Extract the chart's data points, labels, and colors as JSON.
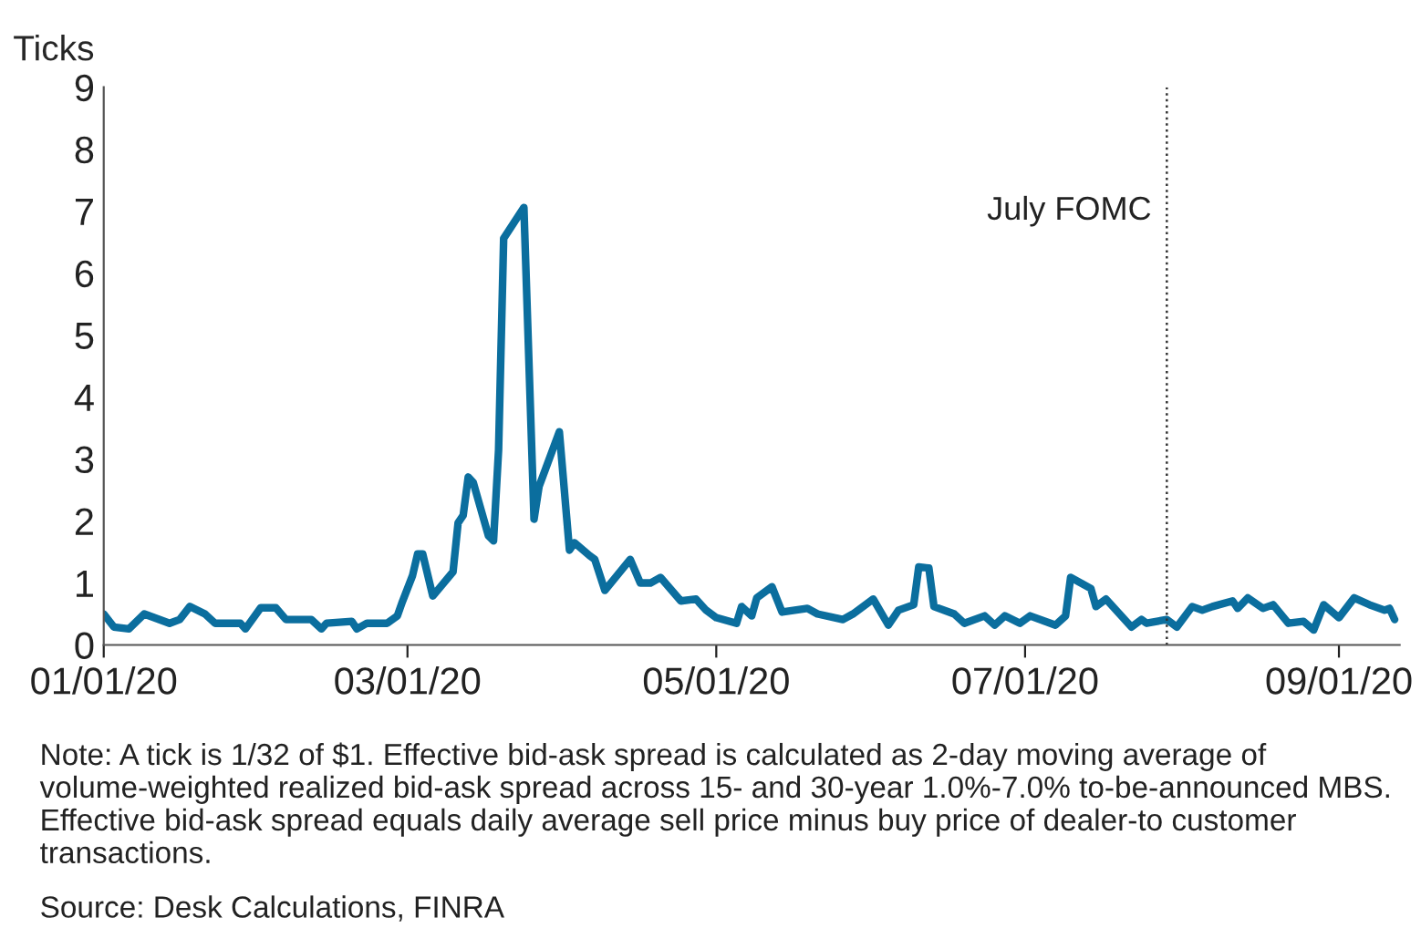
{
  "chart_data": {
    "type": "line",
    "ylabel": "Ticks",
    "x": [
      "2020-01-01",
      "2020-01-03",
      "2020-01-06",
      "2020-01-09",
      "2020-01-14",
      "2020-01-16",
      "2020-01-18",
      "2020-01-21",
      "2020-01-23",
      "2020-01-28",
      "2020-01-29",
      "2020-02-01",
      "2020-02-04",
      "2020-02-06",
      "2020-02-11",
      "2020-02-13",
      "2020-02-14",
      "2020-02-19",
      "2020-02-20",
      "2020-02-22",
      "2020-02-26",
      "2020-02-28",
      "2020-02-29",
      "2020-03-02",
      "2020-03-03",
      "2020-03-04",
      "2020-03-06",
      "2020-03-10",
      "2020-03-11",
      "2020-03-12",
      "2020-03-13",
      "2020-03-14",
      "2020-03-17",
      "2020-03-18",
      "2020-03-19",
      "2020-03-20",
      "2020-03-24",
      "2020-03-26",
      "2020-03-27",
      "2020-03-31",
      "2020-04-02",
      "2020-04-03",
      "2020-04-06",
      "2020-04-07",
      "2020-04-09",
      "2020-04-14",
      "2020-04-16",
      "2020-04-18",
      "2020-04-20",
      "2020-04-24",
      "2020-04-27",
      "2020-04-29",
      "2020-05-01",
      "2020-05-05",
      "2020-05-06",
      "2020-05-08",
      "2020-05-09",
      "2020-05-12",
      "2020-05-14",
      "2020-05-19",
      "2020-05-21",
      "2020-05-26",
      "2020-05-28",
      "2020-06-01",
      "2020-06-04",
      "2020-06-06",
      "2020-06-09",
      "2020-06-10",
      "2020-06-12",
      "2020-06-13",
      "2020-06-17",
      "2020-06-19",
      "2020-06-23",
      "2020-06-25",
      "2020-06-27",
      "2020-06-30",
      "2020-07-02",
      "2020-07-07",
      "2020-07-09",
      "2020-07-10",
      "2020-07-14",
      "2020-07-15",
      "2020-07-17",
      "2020-07-22",
      "2020-07-24",
      "2020-07-25",
      "2020-07-29",
      "2020-07-31",
      "2020-08-03",
      "2020-08-05",
      "2020-08-07",
      "2020-08-11",
      "2020-08-12",
      "2020-08-14",
      "2020-08-17",
      "2020-08-19",
      "2020-08-22",
      "2020-08-25",
      "2020-08-27",
      "2020-08-29",
      "2020-09-01",
      "2020-09-04",
      "2020-09-07",
      "2020-09-10",
      "2020-09-11",
      "2020-09-12"
    ],
    "series": [
      {
        "color": "#0b6e9e",
        "values": [
          0.5,
          0.29,
          0.26,
          0.5,
          0.35,
          0.41,
          0.62,
          0.5,
          0.35,
          0.35,
          0.26,
          0.6,
          0.6,
          0.41,
          0.41,
          0.26,
          0.35,
          0.38,
          0.26,
          0.35,
          0.35,
          0.47,
          0.7,
          1.12,
          1.47,
          1.47,
          0.79,
          1.18,
          1.97,
          2.09,
          2.71,
          2.62,
          1.76,
          1.68,
          3.15,
          6.56,
          7.06,
          2.03,
          2.56,
          3.44,
          1.53,
          1.65,
          1.44,
          1.38,
          0.88,
          1.38,
          1.0,
          1.0,
          1.09,
          0.71,
          0.74,
          0.56,
          0.44,
          0.35,
          0.62,
          0.47,
          0.76,
          0.94,
          0.53,
          0.59,
          0.5,
          0.41,
          0.5,
          0.74,
          0.32,
          0.56,
          0.65,
          1.26,
          1.24,
          0.62,
          0.5,
          0.35,
          0.47,
          0.32,
          0.47,
          0.35,
          0.47,
          0.32,
          0.47,
          1.09,
          0.91,
          0.62,
          0.74,
          0.29,
          0.41,
          0.35,
          0.41,
          0.29,
          0.62,
          0.56,
          0.62,
          0.71,
          0.59,
          0.76,
          0.59,
          0.65,
          0.35,
          0.38,
          0.24,
          0.65,
          0.44,
          0.76,
          0.65,
          0.56,
          0.59,
          0.41
        ]
      }
    ],
    "xlim": [
      "2020-01-01",
      "2020-09-13"
    ],
    "xticks": [
      {
        "value": "2020-01-01",
        "label": "01/01/20"
      },
      {
        "value": "2020-03-01",
        "label": "03/01/20"
      },
      {
        "value": "2020-05-01",
        "label": "05/01/20"
      },
      {
        "value": "2020-07-01",
        "label": "07/01/20"
      },
      {
        "value": "2020-09-01",
        "label": "09/01/20"
      }
    ],
    "ylim": [
      0,
      9
    ],
    "yticks": [
      0,
      1,
      2,
      3,
      4,
      5,
      6,
      7,
      8,
      9
    ],
    "ref_lines": [
      {
        "axis": "x",
        "value": "2020-07-29",
        "label": "July FOMC",
        "color": "#333333",
        "line_style": "dotted"
      }
    ],
    "grid": false,
    "legend": false,
    "marker": "none",
    "line_style": "solid",
    "annotations": [
      "Note: A tick is 1/32 of $1. Effective bid-ask spread is calculated as 2-day moving average of volume-weighted realized bid-ask spread across 15- and 30-year 1.0%-7.0% to-be-announced MBS. Effective bid-ask spread equals daily average sell price minus buy price of dealer-to customer transactions.",
      "Source: Desk Calculations, FINRA"
    ]
  }
}
